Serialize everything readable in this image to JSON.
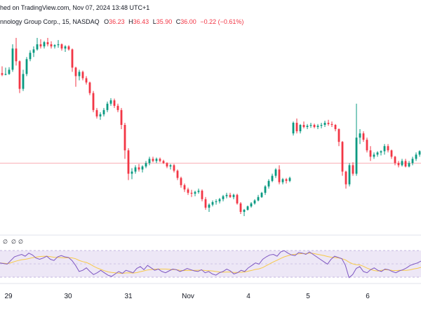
{
  "header": {
    "published": "hed on TradingView.com, Nov 07, 2024 13:48 UTC+1",
    "symbol": "nnology Group Corp., 15, NASDAQ",
    "open_label": "O",
    "open": "36.23",
    "high_label": "H",
    "high": "36.43",
    "low_label": "L",
    "low": "35.90",
    "close_label": "C",
    "close": "36.00",
    "change": "−0.22 (−0.61%)",
    "change_color": "#f23645"
  },
  "rsi": {
    "labels": [
      "∅",
      "∅",
      "∅"
    ],
    "line_color": "#7e57c2",
    "ma_color": "#f7c948",
    "band_color": "#ede7f6",
    "values": [
      44,
      43,
      42,
      48,
      54,
      56,
      58,
      55,
      60,
      57,
      52,
      50,
      52,
      55,
      50,
      48,
      54,
      56,
      54,
      53,
      48,
      40,
      30,
      32,
      36,
      30,
      25,
      28,
      32,
      28,
      24,
      22,
      26,
      30,
      27,
      32,
      30,
      28,
      35,
      38,
      33,
      40,
      36,
      32,
      34,
      30,
      28,
      31,
      34,
      33,
      30,
      32,
      35,
      33,
      31,
      30,
      33,
      28,
      30,
      26,
      24,
      28,
      30,
      34,
      31,
      26,
      28,
      32,
      30,
      36,
      40,
      44,
      42,
      50,
      54,
      57,
      58,
      55,
      62,
      64,
      60,
      57,
      56,
      61,
      60,
      58,
      62,
      58,
      54,
      50,
      46,
      42,
      50,
      55,
      53,
      51,
      40,
      20,
      25,
      35,
      38,
      30,
      28,
      33,
      36,
      32,
      30,
      34,
      33,
      30,
      28,
      31,
      33,
      36,
      40,
      42,
      44,
      47
    ]
  },
  "axis": {
    "labels": [
      "29",
      "30",
      "31",
      "Nov",
      "4",
      "5",
      "6"
    ],
    "reference_price": 36.8
  },
  "chart_data": {
    "type": "candlestick",
    "up_color": "#089981",
    "down_color": "#f23645",
    "ohlc": [
      [
        38.92,
        39.08,
        38.85,
        38.88
      ],
      [
        38.88,
        39.05,
        38.87,
        38.9
      ],
      [
        38.9,
        39.06,
        38.88,
        39.0
      ],
      [
        39.0,
        39.6,
        38.95,
        39.5
      ],
      [
        39.5,
        39.75,
        39.1,
        39.2
      ],
      [
        39.2,
        39.22,
        38.45,
        38.55
      ],
      [
        38.55,
        39.0,
        38.5,
        38.9
      ],
      [
        38.9,
        39.3,
        38.85,
        39.25
      ],
      [
        39.25,
        39.46,
        39.2,
        39.4
      ],
      [
        39.4,
        39.55,
        39.3,
        39.48
      ],
      [
        39.48,
        39.75,
        39.45,
        39.6
      ],
      [
        39.6,
        39.72,
        39.5,
        39.55
      ],
      [
        39.55,
        39.68,
        39.5,
        39.65
      ],
      [
        39.65,
        39.75,
        39.55,
        39.6
      ],
      [
        39.6,
        39.67,
        39.5,
        39.55
      ],
      [
        39.55,
        39.6,
        39.5,
        39.58
      ],
      [
        39.58,
        39.7,
        39.52,
        39.6
      ],
      [
        39.6,
        39.62,
        39.45,
        39.5
      ],
      [
        39.5,
        39.58,
        39.42,
        39.55
      ],
      [
        39.55,
        39.58,
        39.45,
        39.48
      ],
      [
        39.48,
        39.5,
        38.95,
        39.05
      ],
      [
        39.05,
        39.07,
        38.6,
        38.85
      ],
      [
        38.85,
        39.0,
        38.75,
        38.95
      ],
      [
        38.95,
        38.98,
        38.75,
        38.8
      ],
      [
        38.8,
        38.85,
        38.65,
        38.7
      ],
      [
        38.7,
        38.72,
        38.4,
        38.45
      ],
      [
        38.45,
        38.5,
        38.0,
        38.05
      ],
      [
        38.05,
        38.1,
        37.85,
        37.9
      ],
      [
        37.9,
        38.0,
        37.82,
        37.95
      ],
      [
        37.95,
        38.1,
        37.9,
        38.05
      ],
      [
        38.05,
        38.25,
        38.0,
        38.2
      ],
      [
        38.2,
        38.33,
        38.15,
        38.28
      ],
      [
        38.28,
        38.32,
        38.1,
        38.15
      ],
      [
        38.15,
        38.2,
        38.0,
        38.05
      ],
      [
        38.05,
        38.1,
        37.6,
        37.7
      ],
      [
        37.7,
        37.75,
        36.9,
        37.1
      ],
      [
        37.1,
        37.15,
        36.4,
        36.55
      ],
      [
        36.55,
        36.68,
        36.42,
        36.6
      ],
      [
        36.6,
        36.75,
        36.55,
        36.7
      ],
      [
        36.7,
        36.78,
        36.6,
        36.65
      ],
      [
        36.65,
        36.75,
        36.58,
        36.72
      ],
      [
        36.72,
        36.85,
        36.68,
        36.8
      ],
      [
        36.8,
        36.95,
        36.75,
        36.9
      ],
      [
        36.9,
        36.95,
        36.82,
        36.85
      ],
      [
        36.85,
        36.93,
        36.8,
        36.9
      ],
      [
        36.9,
        36.93,
        36.82,
        36.85
      ],
      [
        36.85,
        36.88,
        36.78,
        36.8
      ],
      [
        36.8,
        36.82,
        36.68,
        36.72
      ],
      [
        36.72,
        36.78,
        36.65,
        36.75
      ],
      [
        36.75,
        36.78,
        36.58,
        36.62
      ],
      [
        36.62,
        36.65,
        36.4,
        36.45
      ],
      [
        36.45,
        36.48,
        36.22,
        36.28
      ],
      [
        36.28,
        36.32,
        36.12,
        36.18
      ],
      [
        36.18,
        36.22,
        36.05,
        36.1
      ],
      [
        36.1,
        36.17,
        36.0,
        36.08
      ],
      [
        36.08,
        36.15,
        36.02,
        36.12
      ],
      [
        36.12,
        36.2,
        36.08,
        36.15
      ],
      [
        36.15,
        36.18,
        35.9,
        35.95
      ],
      [
        35.95,
        36.0,
        35.7,
        35.75
      ],
      [
        35.75,
        35.85,
        35.65,
        35.82
      ],
      [
        35.82,
        35.92,
        35.78,
        35.88
      ],
      [
        35.88,
        35.95,
        35.82,
        35.9
      ],
      [
        35.9,
        35.98,
        35.85,
        35.95
      ],
      [
        35.95,
        36.05,
        35.9,
        36.02
      ],
      [
        36.02,
        36.1,
        35.97,
        36.05
      ],
      [
        36.05,
        36.1,
        35.98,
        36.0
      ],
      [
        36.0,
        36.08,
        35.95,
        36.05
      ],
      [
        36.05,
        36.08,
        35.82,
        35.85
      ],
      [
        35.85,
        35.88,
        35.6,
        35.65
      ],
      [
        35.65,
        35.72,
        35.55,
        35.7
      ],
      [
        35.7,
        35.8,
        35.68,
        35.78
      ],
      [
        35.78,
        35.88,
        35.75,
        35.85
      ],
      [
        35.85,
        35.95,
        35.82,
        35.92
      ],
      [
        35.92,
        36.05,
        35.9,
        36.0
      ],
      [
        36.0,
        36.12,
        35.98,
        36.1
      ],
      [
        36.1,
        36.28,
        36.05,
        36.25
      ],
      [
        36.25,
        36.42,
        36.2,
        36.38
      ],
      [
        36.38,
        36.55,
        36.35,
        36.5
      ],
      [
        36.5,
        36.68,
        36.45,
        36.65
      ],
      [
        36.65,
        36.75,
        36.3,
        36.35
      ],
      [
        36.35,
        36.45,
        36.3,
        36.42
      ],
      [
        36.42,
        36.45,
        36.32,
        36.38
      ],
      [
        36.38,
        36.48,
        36.35,
        36.45
      ],
      [
        37.5,
        37.78,
        37.45,
        37.75
      ],
      [
        37.75,
        37.85,
        37.5,
        37.55
      ],
      [
        37.55,
        37.72,
        37.5,
        37.7
      ],
      [
        37.7,
        37.78,
        37.62,
        37.65
      ],
      [
        37.65,
        37.72,
        37.6,
        37.68
      ],
      [
        37.68,
        37.75,
        37.63,
        37.7
      ],
      [
        37.7,
        37.73,
        37.62,
        37.65
      ],
      [
        37.65,
        37.72,
        37.6,
        37.68
      ],
      [
        37.68,
        37.75,
        37.62,
        37.7
      ],
      [
        37.7,
        37.8,
        37.65,
        37.75
      ],
      [
        37.75,
        37.82,
        37.68,
        37.72
      ],
      [
        37.72,
        37.78,
        37.65,
        37.7
      ],
      [
        37.7,
        37.72,
        37.55,
        37.6
      ],
      [
        37.6,
        37.62,
        37.2,
        37.3
      ],
      [
        37.3,
        37.32,
        36.5,
        36.6
      ],
      [
        36.6,
        36.62,
        36.2,
        36.3
      ],
      [
        36.3,
        36.8,
        36.25,
        36.75
      ],
      [
        36.75,
        36.82,
        36.5,
        36.55
      ],
      [
        36.55,
        38.2,
        36.5,
        37.4
      ],
      [
        37.4,
        37.6,
        37.25,
        37.5
      ],
      [
        37.5,
        37.55,
        37.3,
        37.35
      ],
      [
        37.35,
        37.4,
        37.05,
        37.1
      ],
      [
        37.1,
        37.2,
        36.85,
        36.95
      ],
      [
        36.95,
        37.05,
        36.9,
        37.0
      ],
      [
        37.0,
        37.08,
        36.95,
        37.05
      ],
      [
        37.05,
        37.1,
        36.98,
        37.08
      ],
      [
        37.08,
        37.25,
        37.0,
        37.2
      ],
      [
        37.2,
        37.25,
        37.05,
        37.1
      ],
      [
        37.1,
        37.12,
        36.9,
        36.95
      ],
      [
        36.95,
        36.97,
        36.75,
        36.8
      ],
      [
        36.8,
        36.85,
        36.7,
        36.75
      ],
      [
        36.75,
        36.9,
        36.72,
        36.85
      ],
      [
        36.85,
        36.9,
        36.7,
        36.72
      ],
      [
        36.72,
        36.85,
        36.7,
        36.8
      ],
      [
        36.8,
        36.95,
        36.75,
        36.9
      ],
      [
        36.9,
        37.05,
        36.85,
        37.0
      ],
      [
        37.0,
        37.1,
        36.95,
        37.08
      ]
    ]
  }
}
